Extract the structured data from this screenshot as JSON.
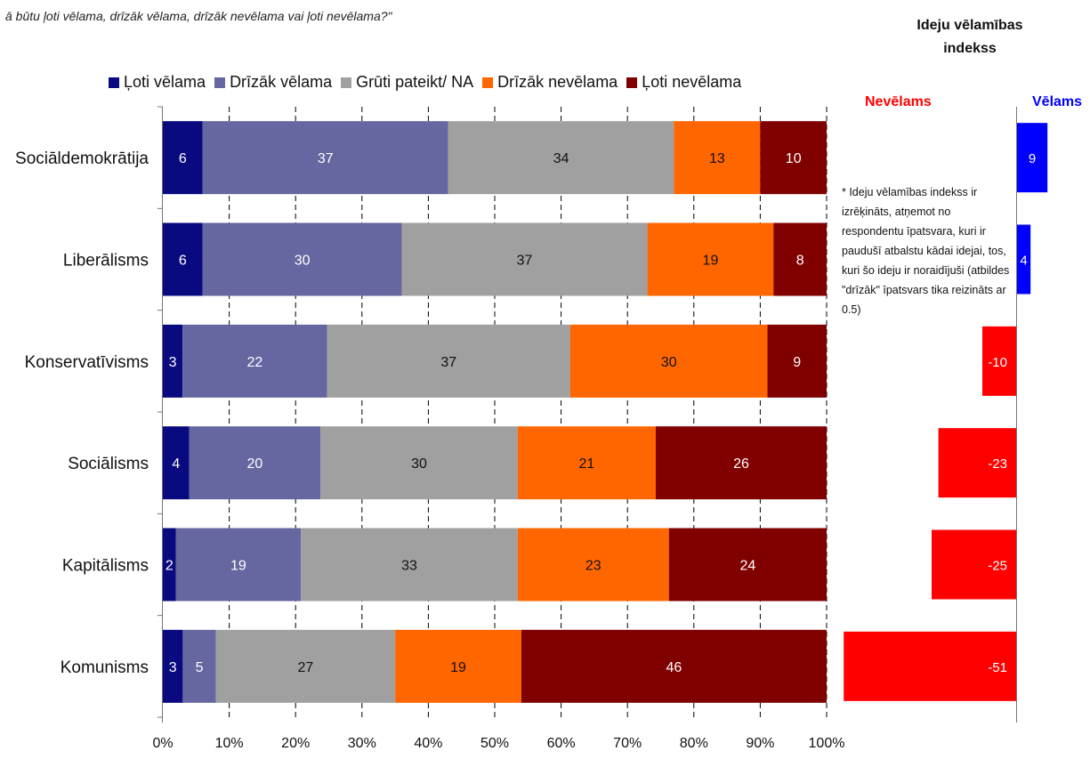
{
  "header": {
    "question": "ā būtu ļoti vēlama, drīzāk vēlama, drīzāk nevēlama vai ļoti nevēlama?\"",
    "index_title": "Ideju vēlamības indekss"
  },
  "index_panel": {
    "negative_label": "Nevēlams",
    "positive_label": "Vēlams",
    "note": "* Ideju vēlamības indekss ir izrēķināts, atņemot no respondentu īpatsvara, kuri ir paudušī atbalstu kādai idejai, tos, kuri šo ideju ir noraidījuši (atbildes \"drīzāk\" īpatsvars tika reizināts ar 0.5)"
  },
  "colors": {
    "series": [
      "#0a0a80",
      "#6666a0",
      "#a0a0a0",
      "#ff6600",
      "#800000"
    ],
    "index_positive": "#0000ff",
    "index_negative": "#ff0000",
    "negative_label": "#ff0000",
    "positive_label": "#0000ff"
  },
  "chart_data": [
    {
      "type": "bar",
      "orientation": "horizontal",
      "stacked": true,
      "percent_axis": true,
      "categories": [
        "Sociāldemokrātija",
        "Liberālisms",
        "Konservatīvisms",
        "Sociālisms",
        "Kapitālisms",
        "Komunisms"
      ],
      "series": [
        {
          "name": "Ļoti vēlama",
          "values": [
            6,
            6,
            3,
            4,
            2,
            3
          ]
        },
        {
          "name": "Drīzāk vēlama",
          "values": [
            37,
            30,
            22,
            20,
            19,
            5
          ]
        },
        {
          "name": "Grūti pateikt/ NA",
          "values": [
            34,
            37,
            37,
            30,
            33,
            27
          ]
        },
        {
          "name": "Drīzāk nevēlama",
          "values": [
            13,
            19,
            30,
            21,
            23,
            19
          ]
        },
        {
          "name": "Ļoti nevēlama",
          "values": [
            10,
            8,
            9,
            26,
            24,
            46
          ]
        }
      ],
      "x_ticks": [
        "0%",
        "10%",
        "20%",
        "30%",
        "40%",
        "50%",
        "60%",
        "70%",
        "80%",
        "90%",
        "100%"
      ],
      "xlim": [
        0,
        100
      ],
      "legend_position": "top",
      "grid": "vertical dashed"
    },
    {
      "type": "bar",
      "orientation": "horizontal",
      "title": "Ideju vēlamības indekss",
      "categories": [
        "Sociāldemokrātija",
        "Liberālisms",
        "Konservatīvisms",
        "Sociālisms",
        "Kapitālisms",
        "Komunisms"
      ],
      "values": [
        9,
        4,
        -10,
        -23,
        -25,
        -51
      ],
      "labels": [
        "9",
        "4",
        "-10",
        "-23",
        "-25",
        "-51"
      ]
    }
  ]
}
